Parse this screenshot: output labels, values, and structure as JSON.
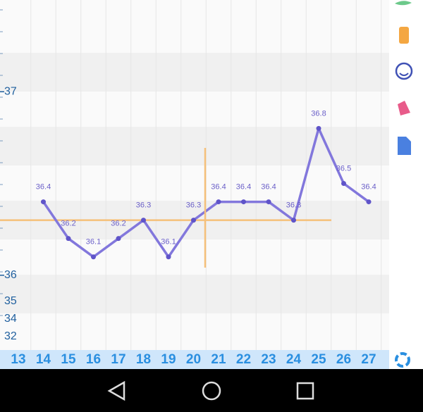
{
  "chart_data": {
    "type": "line",
    "categories": [
      "13",
      "14",
      "15",
      "16",
      "17",
      "18",
      "19",
      "20",
      "21",
      "22",
      "23",
      "24",
      "25",
      "26",
      "27"
    ],
    "values": [
      null,
      36.4,
      36.2,
      36.1,
      36.2,
      36.3,
      36.1,
      36.3,
      36.4,
      36.4,
      36.4,
      36.3,
      36.8,
      36.5,
      36.4
    ],
    "color": "#8277dc",
    "point_color": "#5f54c9",
    "ylim": [
      35.6,
      37.5
    ],
    "yticks": [
      36,
      37
    ],
    "lower_axis_labels": [
      "35",
      "34",
      "32"
    ],
    "coverline": 36.3,
    "coverline_color": "#f5c07a"
  }
}
